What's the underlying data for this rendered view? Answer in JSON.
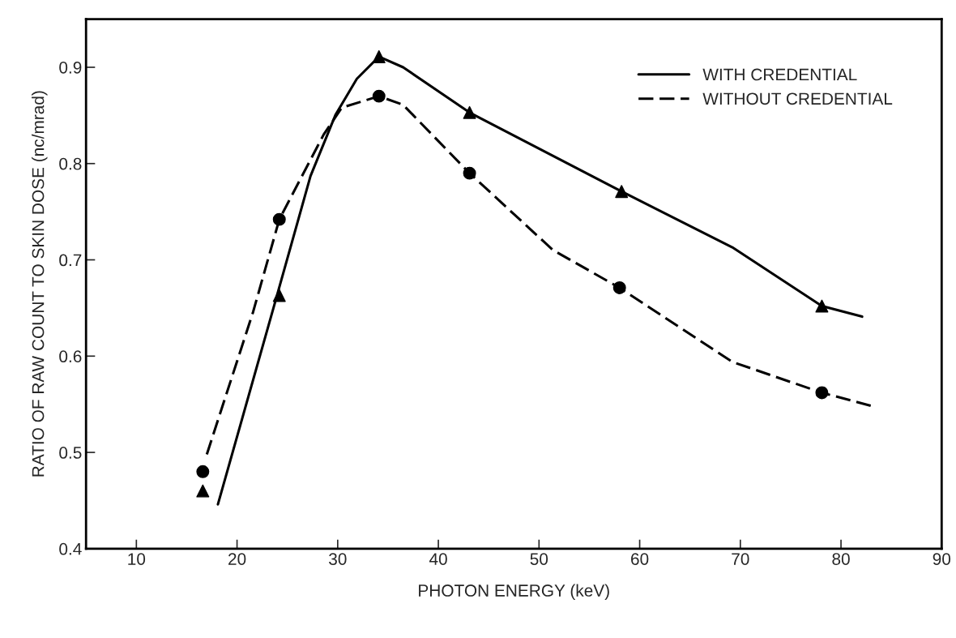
{
  "chart_data": {
    "type": "line",
    "xlabel": "PHOTON ENERGY (keV)",
    "ylabel": "RATIO OF RAW COUNT TO SKIN DOSE (nc/mrad)",
    "xlim": [
      5,
      90
    ],
    "xticks": [
      10,
      20,
      30,
      40,
      50,
      60,
      70,
      80,
      90
    ],
    "ylim": [
      0.4,
      0.95
    ],
    "yticks": [
      0.4,
      0.5,
      0.6,
      0.7,
      0.8,
      0.9
    ],
    "grid": false,
    "legend": "top right",
    "series": [
      {
        "name": "WITH CREDENTIAL",
        "line_style": "solid",
        "marker": "none",
        "color": "#000000",
        "x": [
          18.1,
          23.7,
          27.3,
          29.8,
          31.9,
          34.1,
          36.5,
          43.1,
          58.2,
          69.2,
          78.1,
          82.1
        ],
        "values": [
          0.446,
          0.653,
          0.787,
          0.851,
          0.888,
          0.911,
          0.9,
          0.853,
          0.771,
          0.713,
          0.652,
          0.641
        ]
      },
      {
        "name": "WITHOUT CREDENTIAL",
        "line_style": "dashed",
        "marker": "none",
        "color": "#000000",
        "x": [
          17.0,
          21.6,
          24.2,
          28.6,
          30.4,
          34.1,
          36.5,
          43.1,
          51.4,
          58.0,
          69.2,
          78.1,
          83.1
        ],
        "values": [
          0.498,
          0.646,
          0.742,
          0.83,
          0.858,
          0.87,
          0.861,
          0.79,
          0.71,
          0.671,
          0.594,
          0.562,
          0.548
        ]
      },
      {
        "type": "scatter",
        "marker": "triangle",
        "color": "#000000",
        "x": [
          16.6,
          24.2,
          34.1,
          43.1,
          58.2,
          78.1
        ],
        "values": [
          0.46,
          0.663,
          0.911,
          0.853,
          0.771,
          0.652
        ]
      },
      {
        "type": "scatter",
        "marker": "circle",
        "color": "#000000",
        "x": [
          16.6,
          24.2,
          34.1,
          43.1,
          58.0,
          78.1
        ],
        "values": [
          0.48,
          0.742,
          0.87,
          0.79,
          0.671,
          0.562
        ]
      }
    ]
  }
}
